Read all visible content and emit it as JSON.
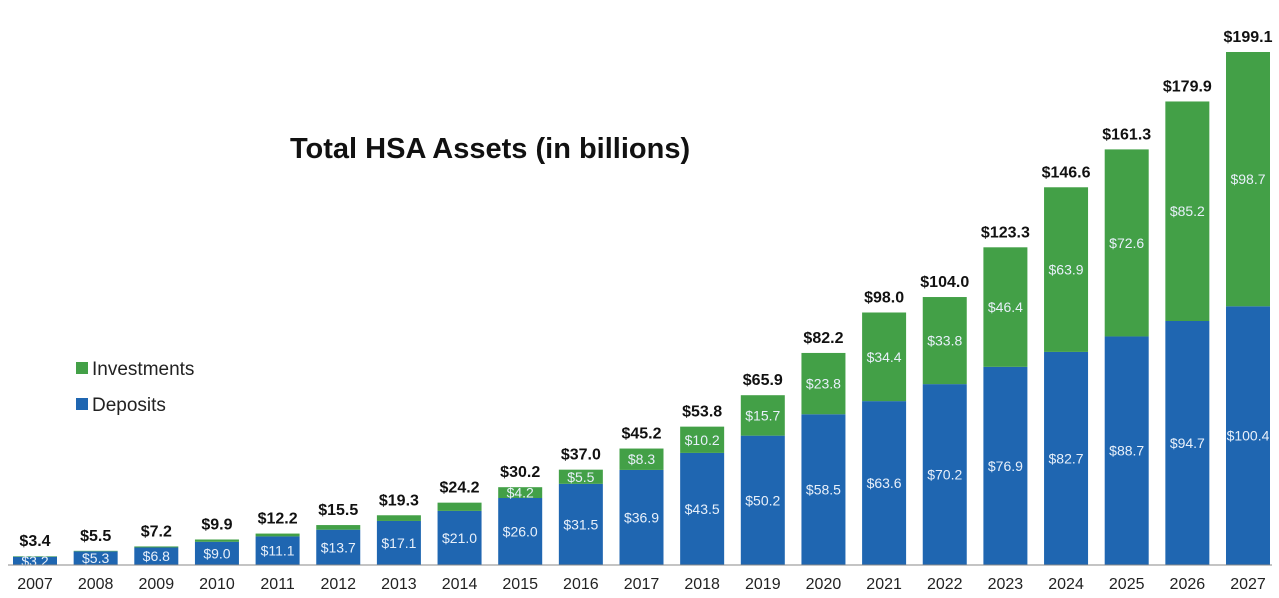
{
  "chart_data": {
    "type": "bar",
    "stacked": true,
    "title": "Total HSA Assets (in billions)",
    "categories": [
      "2007",
      "2008",
      "2009",
      "2010",
      "2011",
      "2012",
      "2013",
      "2014",
      "2015",
      "2016",
      "2017",
      "2018",
      "2019",
      "2020",
      "2021",
      "2022",
      "2023",
      "2024",
      "2025",
      "2026",
      "2027"
    ],
    "series": [
      {
        "name": "Deposits",
        "color": "#1f66b1",
        "values": [
          3.2,
          5.3,
          6.8,
          9.0,
          11.1,
          13.7,
          17.1,
          21.0,
          26.0,
          31.5,
          36.9,
          43.5,
          50.2,
          58.5,
          63.6,
          70.2,
          76.9,
          82.7,
          88.7,
          94.7,
          100.4
        ]
      },
      {
        "name": "Investments",
        "color": "#43a047",
        "values": [
          0.2,
          0.2,
          0.4,
          0.9,
          1.1,
          1.8,
          2.2,
          3.2,
          4.2,
          5.5,
          8.3,
          10.2,
          15.7,
          23.8,
          34.4,
          33.8,
          46.4,
          63.9,
          72.6,
          85.2,
          98.7
        ]
      }
    ],
    "totals": [
      3.4,
      5.5,
      7.2,
      9.9,
      12.2,
      15.5,
      19.3,
      24.2,
      30.2,
      37.0,
      45.2,
      53.8,
      65.9,
      82.2,
      98.0,
      104.0,
      123.3,
      146.6,
      161.3,
      179.9,
      199.1
    ],
    "value_prefix": "$",
    "legend": [
      "Investments",
      "Deposits"
    ],
    "legend_placement": "left",
    "grid": false,
    "ylim": [
      0,
      199.1
    ]
  }
}
